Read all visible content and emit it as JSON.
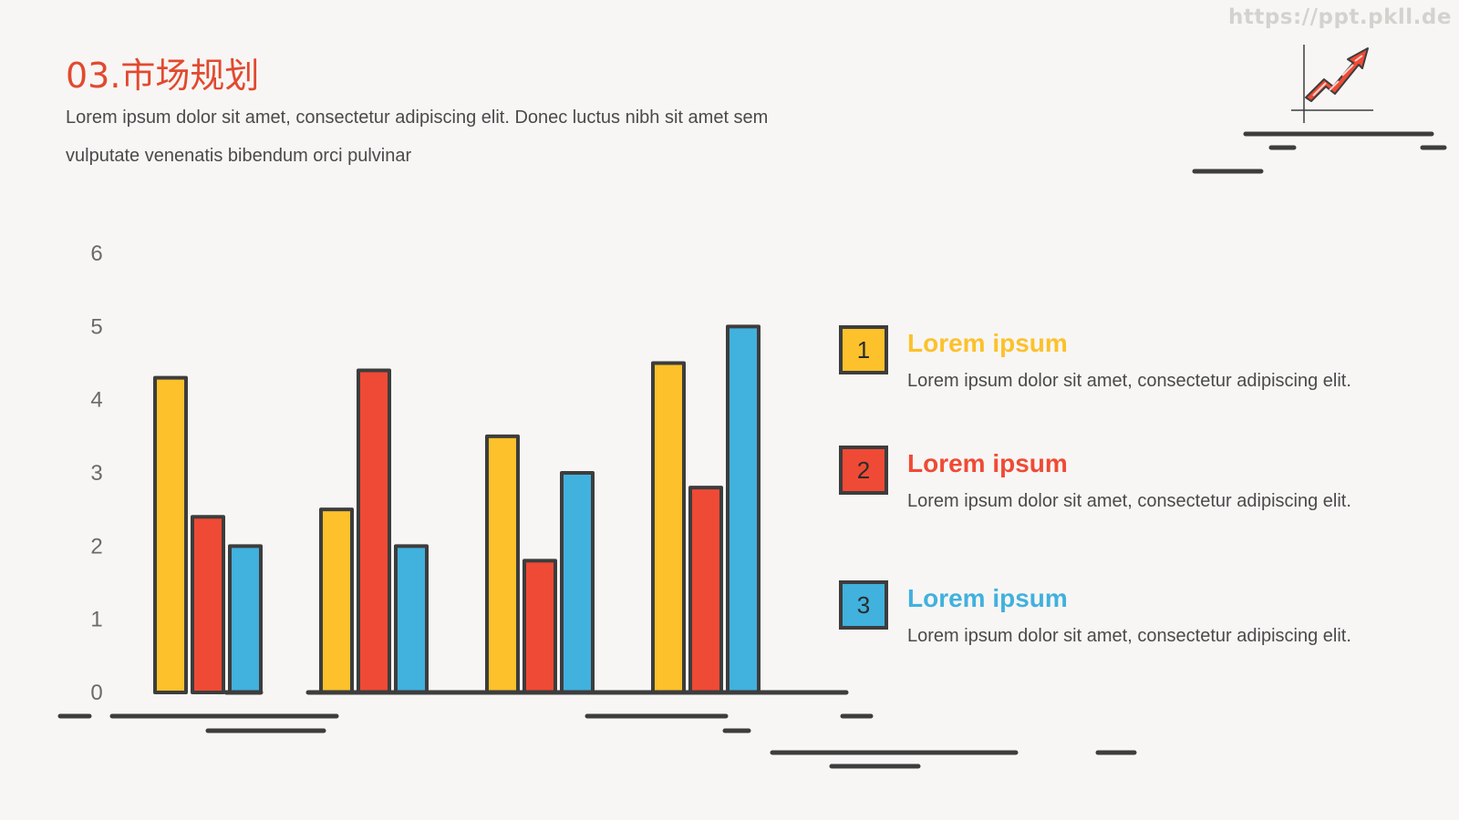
{
  "watermark": "https://ppt.pkll.de",
  "header": {
    "title": "03.市场规划",
    "subtitle": "Lorem ipsum dolor sit amet, consectetur adipiscing elit. Donec luctus nibh sit amet sem vulputate venenatis bibendum orci pulvinar"
  },
  "icons": {
    "top_right": "growth-chart-arrow-icon"
  },
  "colors": {
    "yellow": "#fcc12b",
    "red": "#ef4a35",
    "blue": "#41b1de",
    "outline": "#3d3d3d",
    "title": "#e2492f"
  },
  "legend": [
    {
      "number": "1",
      "title": "Lorem ipsum",
      "desc": "Lorem ipsum dolor sit amet, consectetur adipiscing elit.",
      "color": "#fcc12b"
    },
    {
      "number": "2",
      "title": "Lorem ipsum",
      "desc": "Lorem ipsum dolor sit amet, consectetur adipiscing elit.",
      "color": "#ef4a35"
    },
    {
      "number": "3",
      "title": "Lorem ipsum",
      "desc": "Lorem ipsum dolor sit amet, consectetur adipiscing elit.",
      "color": "#41b1de"
    }
  ],
  "chart_data": {
    "type": "bar",
    "categories": [
      "",
      "",
      "",
      ""
    ],
    "series": [
      {
        "values": [
          4.3,
          2.5,
          3.5,
          4.5
        ],
        "color": "#fcc12b"
      },
      {
        "values": [
          2.4,
          4.4,
          1.8,
          2.8
        ],
        "color": "#ef4a35"
      },
      {
        "values": [
          2.0,
          2.0,
          3.0,
          5.0
        ],
        "color": "#41b1de"
      }
    ],
    "yticks": [
      "0",
      "1",
      "2",
      "3",
      "4",
      "5",
      "6"
    ],
    "ylim": [
      0,
      6
    ],
    "grid": false,
    "legend_position": "right"
  }
}
